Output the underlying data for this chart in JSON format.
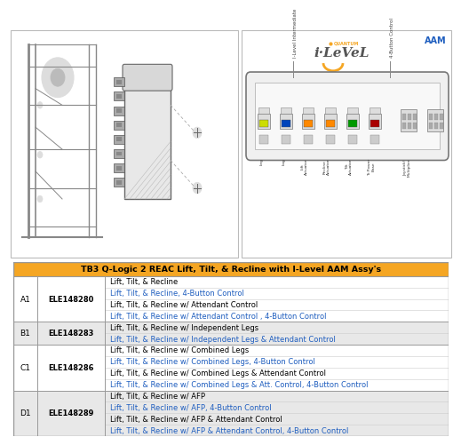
{
  "title": "TB3 Q-Logic 2 REAC Lift, Tilt, & Recline with I-Level AAM Assy's",
  "title_bg": "#F5A623",
  "title_color": "#000000",
  "header_rows": [
    {
      "row": "A1",
      "part": "ELE148280",
      "items": [
        {
          "text": "Lift, Tilt, & Recline",
          "color": "#000000"
        },
        {
          "text": "Lift, Tilt, & Recline, 4-Button Control",
          "color": "#1F5EBF"
        },
        {
          "text": "Lift, Tilt, & Recline w/ Attendant Control",
          "color": "#000000"
        },
        {
          "text": "Lift, Tilt, & Recline w/ Attendant Control , 4-Button Control",
          "color": "#1F5EBF"
        }
      ]
    },
    {
      "row": "B1",
      "part": "ELE148283",
      "items": [
        {
          "text": "Lift, Tilt, & Recline w/ Independent Legs",
          "color": "#000000"
        },
        {
          "text": "Lift, Tilt, & Recline w/ Independent Legs & Attendant Control",
          "color": "#1F5EBF"
        }
      ]
    },
    {
      "row": "C1",
      "part": "ELE148286",
      "items": [
        {
          "text": "Lift, Tilt, & Recline w/ Combined Legs",
          "color": "#000000"
        },
        {
          "text": "Lift, Tilt, & Recline w/ Combined Legs, 4-Button Control",
          "color": "#1F5EBF"
        },
        {
          "text": "Lift, Tilt, & Recline w/ Combined Legs & Attendant Control",
          "color": "#000000"
        },
        {
          "text": "Lift, Tilt, & Recline w/ Combined Legs & Att. Control, 4-Button Control",
          "color": "#1F5EBF"
        }
      ]
    },
    {
      "row": "D1",
      "part": "ELE148289",
      "items": [
        {
          "text": "Lift, Tilt, & Recline w/ AFP",
          "color": "#000000"
        },
        {
          "text": "Lift, Tilt, & Recline w/ AFP, 4-Button Control",
          "color": "#1F5EBF"
        },
        {
          "text": "Lift, Tilt, & Recline w/ AFP & Attendant Control",
          "color": "#000000"
        },
        {
          "text": "Lift, Tilt, & Recline w/ AFP & Attendant Control, 4-Button Control",
          "color": "#1F5EBF"
        }
      ]
    }
  ],
  "table_border_color": "#999999",
  "row_bg": [
    "#FFFFFF",
    "#E8E8E8"
  ],
  "aam_label_color": "#1F5EBF",
  "connector_colors": [
    "#BBDD00",
    "#0055CC",
    "#FF8800",
    "#FF8800",
    "#009900",
    "#CC0000",
    "#888888",
    "#888888"
  ],
  "connector_labels": [
    "Leg",
    "Log",
    "Lift\nActuator",
    "Recline\nActuator",
    "Tilt\nActuator",
    "To Power\nBase",
    "Joystick/\nMultiplier",
    ""
  ],
  "ilevel_intermediate_label": "I-Level Intermediate",
  "four_button_label": "4-Button Control"
}
